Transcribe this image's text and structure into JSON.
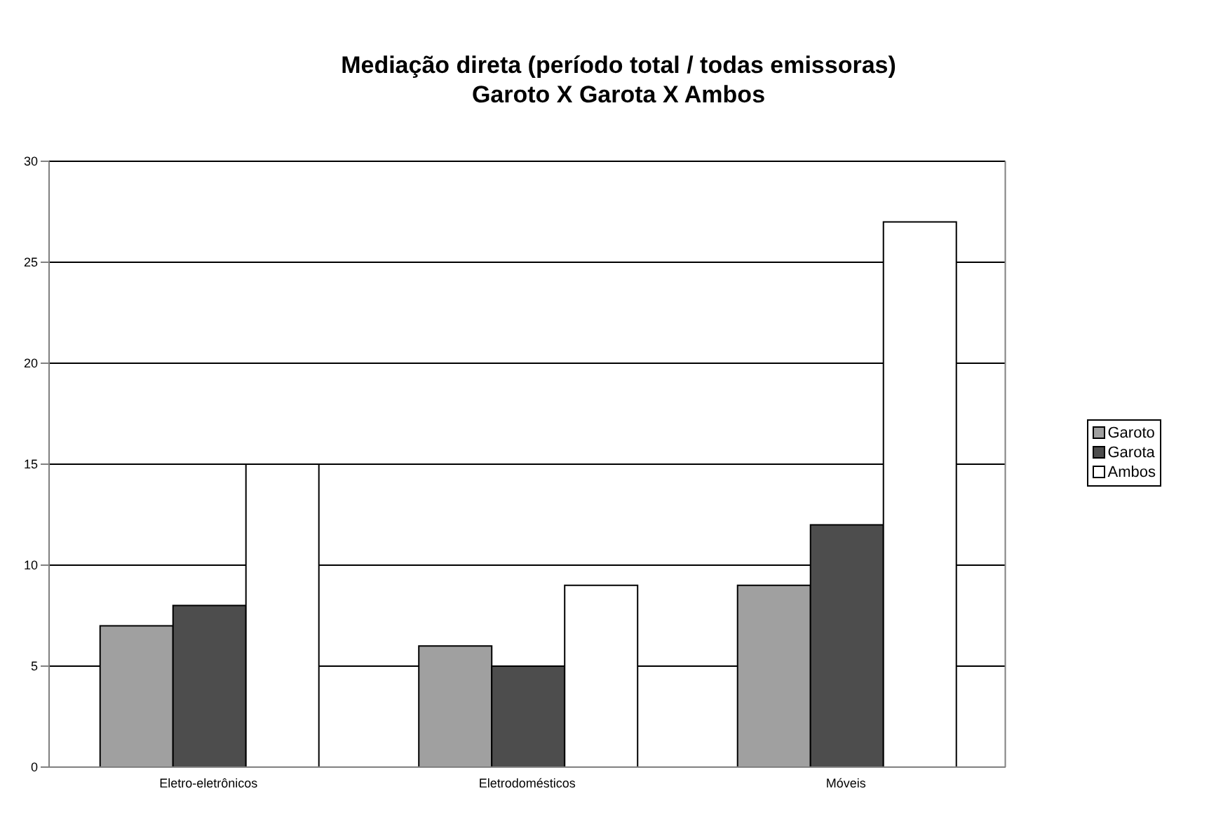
{
  "chart_data": {
    "type": "bar",
    "title": "Mediação direta (período total / todas emissoras)",
    "subtitle": "Garoto X Garota X Ambos",
    "categories": [
      "Eletro-eletrônicos",
      "Eletrodomésticos",
      "Móveis"
    ],
    "series": [
      {
        "name": "Garoto",
        "color": "#a0a0a0",
        "values": [
          7,
          6,
          9
        ]
      },
      {
        "name": "Garota",
        "color": "#4d4d4d",
        "values": [
          8,
          5,
          12
        ]
      },
      {
        "name": "Ambos",
        "color": "#ffffff",
        "values": [
          15,
          9,
          27
        ]
      }
    ],
    "ylim": [
      0,
      30
    ],
    "yticks": [
      0,
      5,
      10,
      15,
      20,
      25,
      30
    ],
    "grid": "y",
    "legend": "right"
  }
}
